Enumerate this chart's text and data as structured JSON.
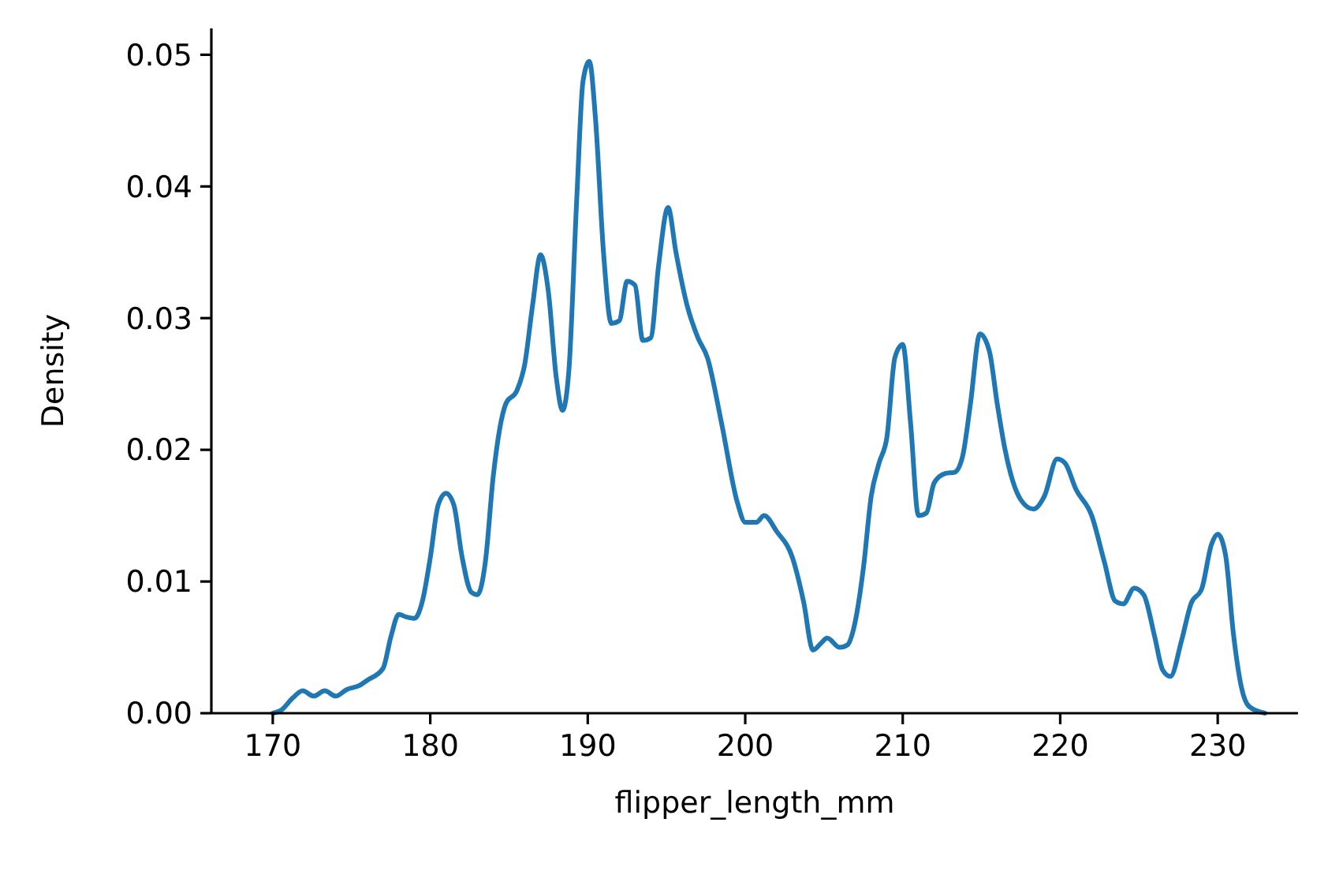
{
  "chart_data": {
    "type": "line",
    "xlabel": "flipper_length_mm",
    "ylabel": "Density",
    "xlim": [
      166.1,
      235.1
    ],
    "ylim": [
      0,
      0.052
    ],
    "xticks": [
      170,
      180,
      190,
      200,
      210,
      220,
      230
    ],
    "yticks": [
      {
        "value": 0,
        "label": "0.00"
      },
      {
        "value": 0.01,
        "label": "0.01"
      },
      {
        "value": 0.02,
        "label": "0.02"
      },
      {
        "value": 0.03,
        "label": "0.03"
      },
      {
        "value": 0.04,
        "label": "0.04"
      },
      {
        "value": 0.05,
        "label": "0.05"
      }
    ],
    "grid": false,
    "series": [
      {
        "color": "#1f77b4",
        "x": [
          170,
          170.5,
          171.3,
          171.9,
          172.6,
          173.3,
          174,
          174.7,
          175.5,
          176,
          177,
          177.5,
          178,
          178.5,
          179,
          179.5,
          180,
          180.5,
          181,
          181.5,
          182,
          182.6,
          183,
          183.5,
          184,
          184.8,
          185.5,
          186,
          186.5,
          187,
          187.5,
          188,
          188.4,
          188.8,
          189.3,
          189.7,
          190.1,
          190.5,
          191,
          191.5,
          192,
          192.5,
          193,
          193.5,
          194,
          194.5,
          195.1,
          195.6,
          196.3,
          197,
          197.6,
          198.5,
          199.5,
          200,
          200.7,
          201.2,
          202,
          203,
          203.7,
          204.3,
          204.8,
          205.2,
          206,
          206.5,
          206.9,
          207.5,
          208,
          208.5,
          209,
          209.5,
          210,
          210.5,
          211,
          211.5,
          212,
          212.7,
          213.3,
          213.8,
          214.3,
          214.9,
          215.5,
          216,
          216.5,
          217.5,
          218.3,
          219,
          219.8,
          220.3,
          221,
          222,
          222.8,
          223.5,
          224,
          224.7,
          225.3,
          226,
          226.5,
          227,
          227.7,
          228.3,
          229,
          229.6,
          230,
          230.5,
          231,
          231.5,
          232,
          233
        ],
        "values": [
          0,
          0.0002,
          0.0012,
          0.0017,
          0.0013,
          0.0017,
          0.0013,
          0.0018,
          0.0021,
          0.0025,
          0.0034,
          0.0058,
          0.0075,
          0.0073,
          0.0072,
          0.0085,
          0.0118,
          0.0158,
          0.0167,
          0.0158,
          0.012,
          0.0092,
          0.009,
          0.0115,
          0.018,
          0.0235,
          0.0245,
          0.0265,
          0.031,
          0.0348,
          0.032,
          0.0255,
          0.023,
          0.026,
          0.039,
          0.048,
          0.0495,
          0.045,
          0.035,
          0.0296,
          0.0298,
          0.0328,
          0.0325,
          0.0283,
          0.0285,
          0.034,
          0.0384,
          0.035,
          0.031,
          0.0285,
          0.027,
          0.022,
          0.016,
          0.0145,
          0.0145,
          0.015,
          0.0138,
          0.0118,
          0.0085,
          0.0048,
          0.0053,
          0.0057,
          0.005,
          0.0052,
          0.0065,
          0.011,
          0.0165,
          0.019,
          0.021,
          0.027,
          0.028,
          0.022,
          0.015,
          0.0152,
          0.0175,
          0.0182,
          0.0183,
          0.0195,
          0.0235,
          0.0288,
          0.0275,
          0.0235,
          0.02,
          0.0162,
          0.0155,
          0.0165,
          0.0193,
          0.019,
          0.017,
          0.015,
          0.0115,
          0.0085,
          0.0083,
          0.0095,
          0.009,
          0.0058,
          0.0033,
          0.0028,
          0.0055,
          0.0083,
          0.0095,
          0.0128,
          0.0136,
          0.012,
          0.006,
          0.002,
          0.0005,
          0
        ]
      }
    ]
  }
}
